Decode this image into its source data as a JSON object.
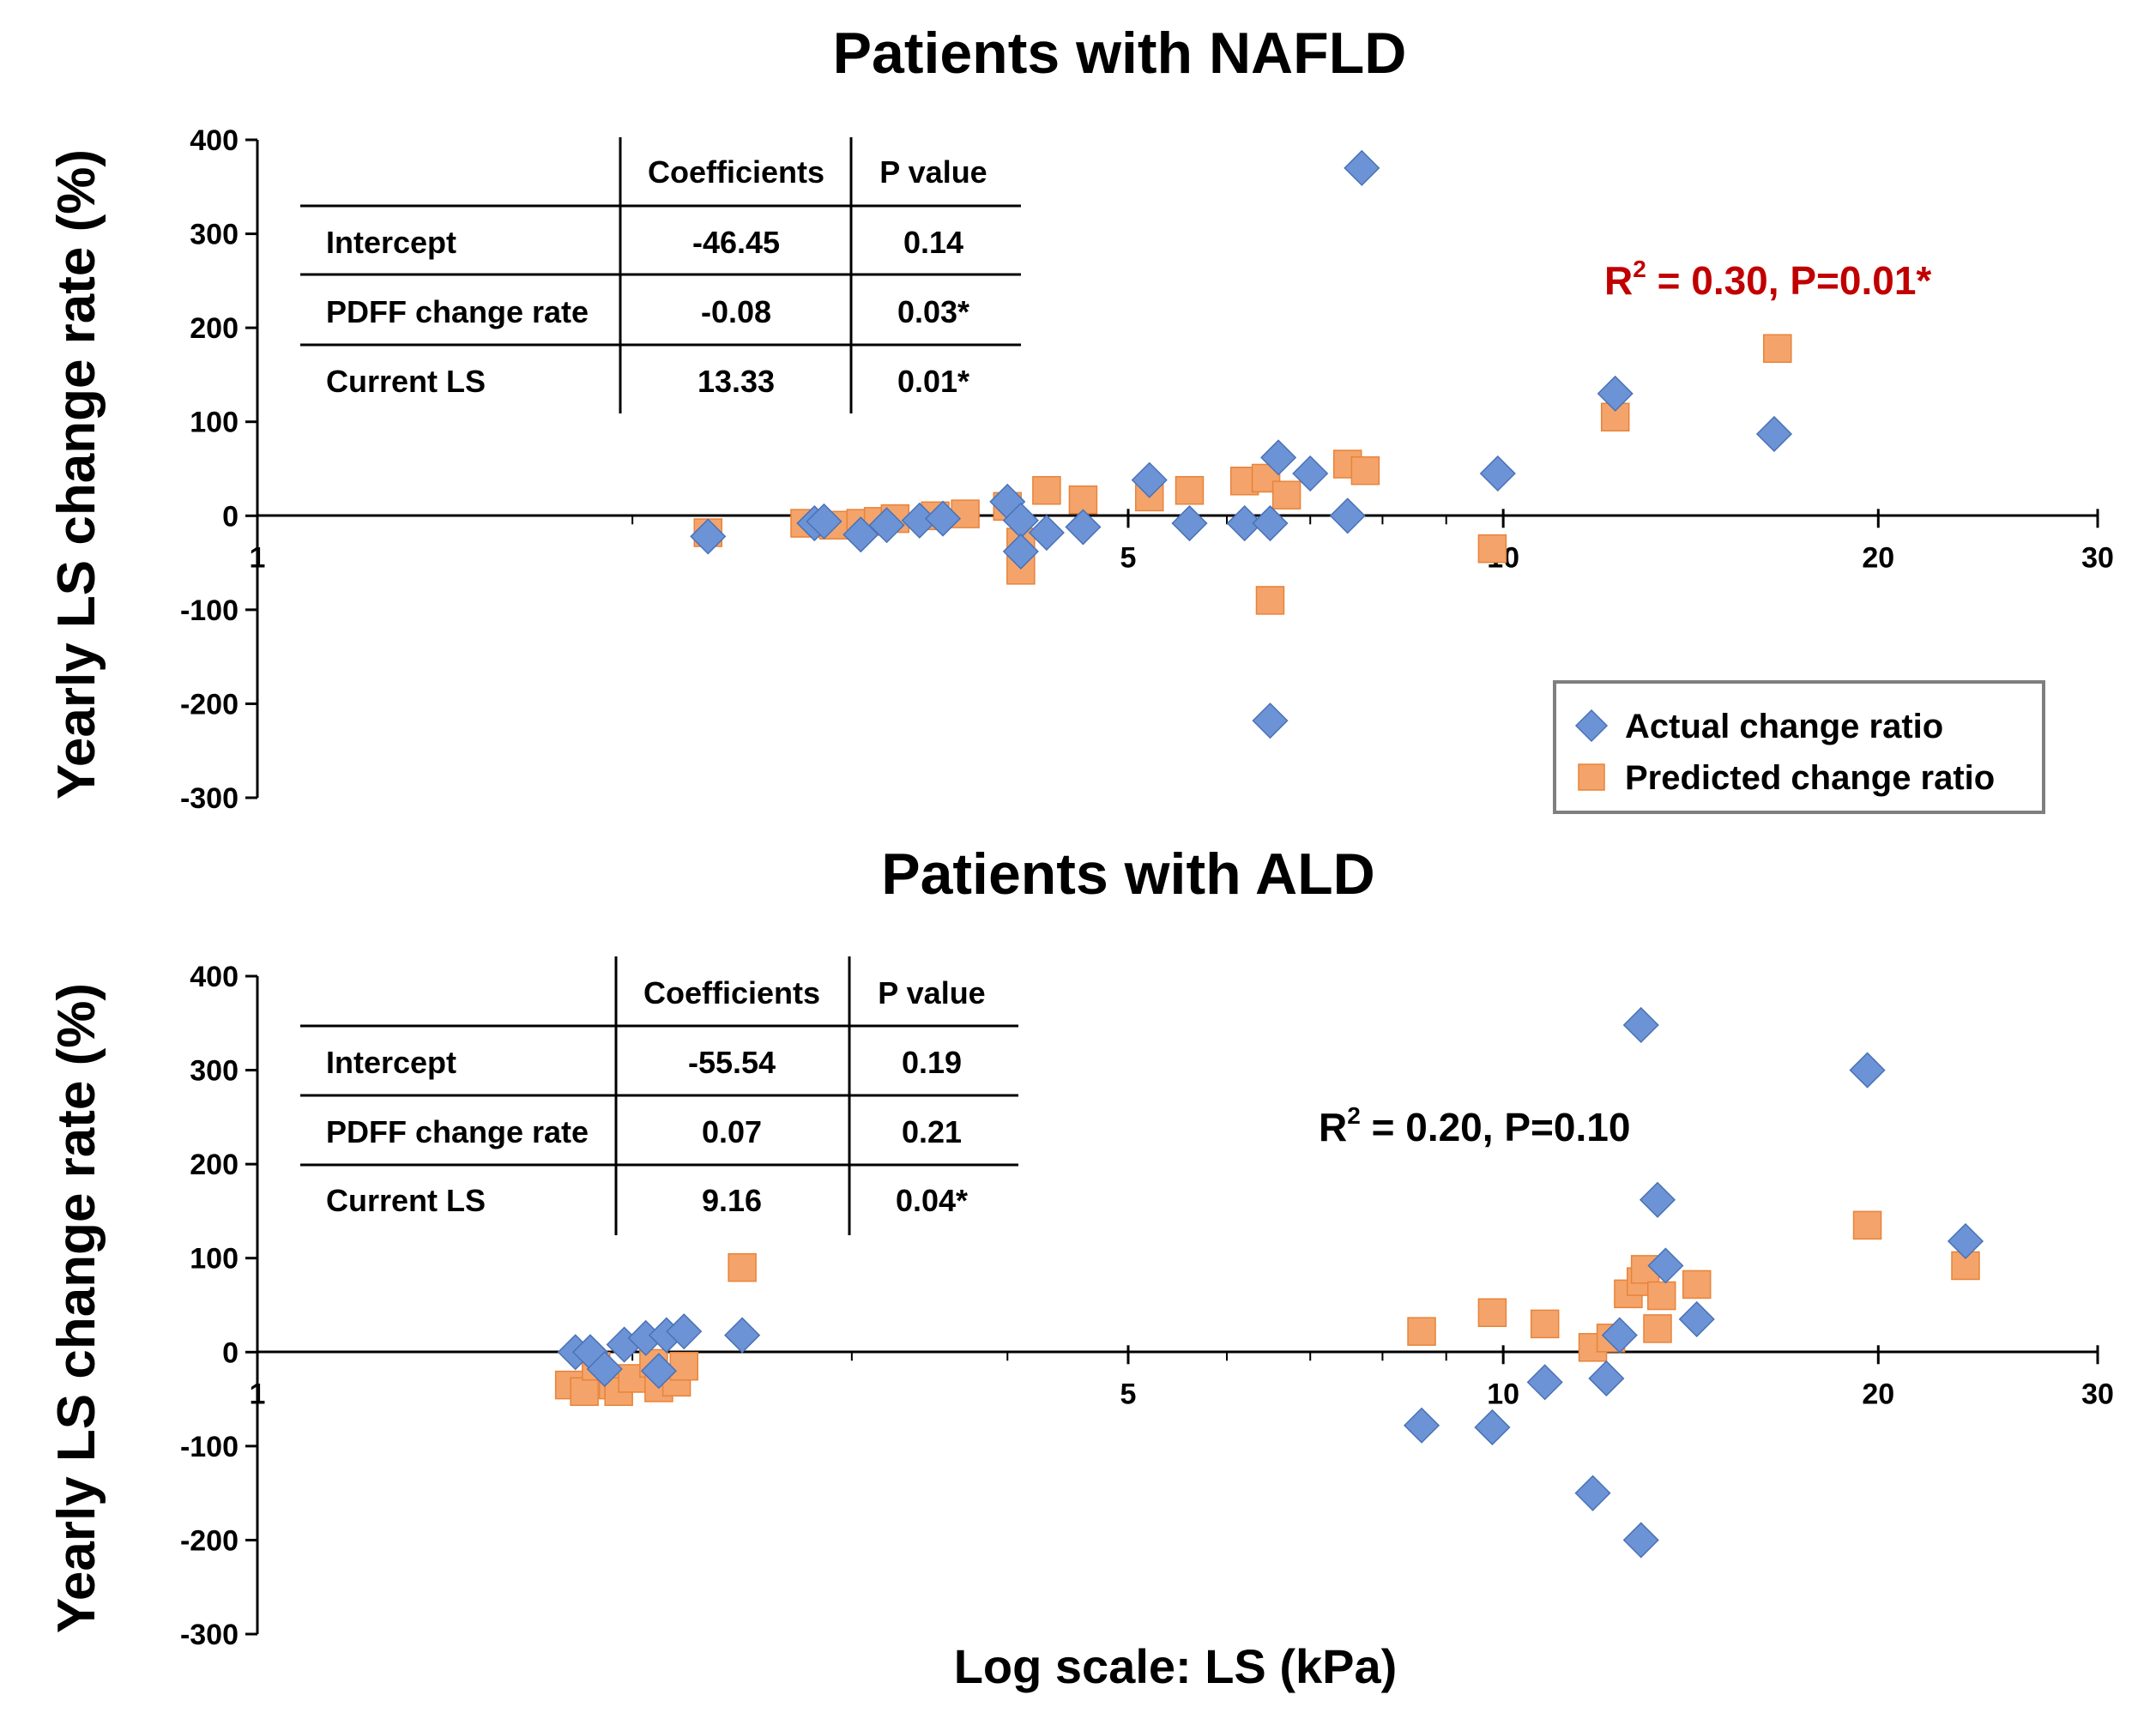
{
  "chart_data": [
    {
      "type": "scatter",
      "title": "Patients with NAFLD",
      "xlabel": "",
      "ylabel": "Yearly LS change rate (%)",
      "x_scale": "log",
      "xlim": [
        1,
        30
      ],
      "ylim": [
        -300,
        400
      ],
      "x_ticks": [
        1,
        5,
        10,
        20,
        30
      ],
      "x_tick_labels": [
        "1",
        "5",
        "10",
        "20",
        "30"
      ],
      "y_ticks": [
        400,
        300,
        200,
        100,
        0,
        -100,
        -200,
        -300
      ],
      "y_tick_labels": [
        "400",
        "300",
        "200",
        "100",
        "0",
        "-100",
        "-200",
        "-300"
      ],
      "annotation": {
        "text_main": "R",
        "sup": "2",
        "text_rest": " = 0.30, P=0.01*",
        "color": "#c00000"
      },
      "table": {
        "headers": [
          "",
          "Coefficients",
          "P value"
        ],
        "rows": [
          {
            "label": "Intercept",
            "coef": "-46.45",
            "p": "0.14"
          },
          {
            "label": "PDFF change rate",
            "coef": "-0.08",
            "p": "0.03*"
          },
          {
            "label": "Current LS",
            "coef": "13.33",
            "p": "0.01*"
          }
        ]
      },
      "legend": {
        "position": "bottom-right",
        "entries": [
          "Actual change ratio",
          "Predicted change ratio"
        ]
      },
      "series": [
        {
          "name": "Actual change ratio",
          "marker": "diamond",
          "color": "#6b93d6",
          "points": [
            [
              2.3,
              -22
            ],
            [
              2.8,
              -8
            ],
            [
              2.85,
              -6
            ],
            [
              3.05,
              -20
            ],
            [
              3.2,
              -10
            ],
            [
              3.4,
              -5
            ],
            [
              3.55,
              -3
            ],
            [
              4.0,
              15
            ],
            [
              4.1,
              -5
            ],
            [
              4.1,
              -38
            ],
            [
              4.3,
              -18
            ],
            [
              4.6,
              -12
            ],
            [
              5.2,
              38
            ],
            [
              5.6,
              -8
            ],
            [
              6.2,
              -8
            ],
            [
              6.5,
              -8
            ],
            [
              6.6,
              62
            ],
            [
              7.0,
              45
            ],
            [
              7.5,
              0
            ],
            [
              7.7,
              370
            ],
            [
              9.9,
              45
            ],
            [
              12.3,
              130
            ],
            [
              16.5,
              87
            ],
            [
              6.5,
              -218
            ]
          ]
        },
        {
          "name": "Predicted change ratio",
          "marker": "square",
          "color": "#f4a46a",
          "points": [
            [
              2.3,
              -18
            ],
            [
              2.75,
              -8
            ],
            [
              2.9,
              -10
            ],
            [
              3.05,
              -8
            ],
            [
              3.15,
              -6
            ],
            [
              3.25,
              -3
            ],
            [
              3.5,
              0
            ],
            [
              3.7,
              2
            ],
            [
              4.0,
              10
            ],
            [
              4.1,
              -28
            ],
            [
              4.1,
              -58
            ],
            [
              4.3,
              27
            ],
            [
              4.6,
              17
            ],
            [
              5.2,
              20
            ],
            [
              5.6,
              27
            ],
            [
              6.2,
              37
            ],
            [
              6.45,
              40
            ],
            [
              6.7,
              22
            ],
            [
              6.5,
              -90
            ],
            [
              7.5,
              55
            ],
            [
              7.75,
              48
            ],
            [
              9.8,
              -35
            ],
            [
              12.3,
              105
            ],
            [
              16.6,
              178
            ]
          ]
        }
      ]
    },
    {
      "type": "scatter",
      "title": "Patients with ALD",
      "xlabel": "Log scale: LS (kPa)",
      "ylabel": "Yearly LS change rate (%)",
      "x_scale": "log",
      "xlim": [
        1,
        30
      ],
      "ylim": [
        -300,
        400
      ],
      "x_ticks": [
        1,
        5,
        10,
        20,
        30
      ],
      "x_tick_labels": [
        "1",
        "5",
        "10",
        "20",
        "30"
      ],
      "y_ticks": [
        400,
        300,
        200,
        100,
        0,
        -100,
        -200,
        -300
      ],
      "y_tick_labels": [
        "400",
        "300",
        "200",
        "100",
        "0",
        "-100",
        "-200",
        "-300"
      ],
      "annotation": {
        "text_main": "R",
        "sup": "2",
        "text_rest": " = 0.20, P=0.10",
        "color": "#000000"
      },
      "table": {
        "headers": [
          "",
          "Coefficients",
          "P value"
        ],
        "rows": [
          {
            "label": "Intercept",
            "coef": "-55.54",
            "p": "0.19"
          },
          {
            "label": "PDFF change rate",
            "coef": "0.07",
            "p": "0.21"
          },
          {
            "label": "Current LS",
            "coef": "9.16",
            "p": "0.04*"
          }
        ]
      },
      "series": [
        {
          "name": "Actual change ratio",
          "marker": "diamond",
          "color": "#6b93d6",
          "points": [
            [
              1.8,
              0
            ],
            [
              1.85,
              0
            ],
            [
              1.9,
              -18
            ],
            [
              1.97,
              8
            ],
            [
              2.05,
              15
            ],
            [
              2.13,
              18
            ],
            [
              2.2,
              22
            ],
            [
              2.45,
              18
            ],
            [
              2.1,
              -20
            ],
            [
              8.6,
              -78
            ],
            [
              9.8,
              -80
            ],
            [
              10.8,
              -32
            ],
            [
              11.8,
              -150
            ],
            [
              12.1,
              -28
            ],
            [
              12.4,
              18
            ],
            [
              12.9,
              348
            ],
            [
              12.9,
              -200
            ],
            [
              13.3,
              162
            ],
            [
              13.5,
              92
            ],
            [
              14.3,
              35
            ],
            [
              19.6,
              300
            ],
            [
              23.5,
              118
            ]
          ]
        },
        {
          "name": "Predicted change ratio",
          "marker": "square",
          "color": "#f4a46a",
          "points": [
            [
              1.78,
              -35
            ],
            [
              1.83,
              -42
            ],
            [
              1.87,
              -15
            ],
            [
              1.93,
              -35
            ],
            [
              1.95,
              -42
            ],
            [
              2.0,
              -28
            ],
            [
              2.08,
              -12
            ],
            [
              2.1,
              -38
            ],
            [
              2.17,
              -32
            ],
            [
              2.2,
              -15
            ],
            [
              2.45,
              90
            ],
            [
              8.6,
              22
            ],
            [
              9.8,
              42
            ],
            [
              10.8,
              30
            ],
            [
              11.8,
              5
            ],
            [
              12.2,
              15
            ],
            [
              12.6,
              62
            ],
            [
              12.9,
              75
            ],
            [
              13.0,
              88
            ],
            [
              13.3,
              25
            ],
            [
              13.4,
              60
            ],
            [
              14.3,
              72
            ],
            [
              19.6,
              135
            ],
            [
              23.5,
              92
            ]
          ]
        }
      ]
    }
  ]
}
